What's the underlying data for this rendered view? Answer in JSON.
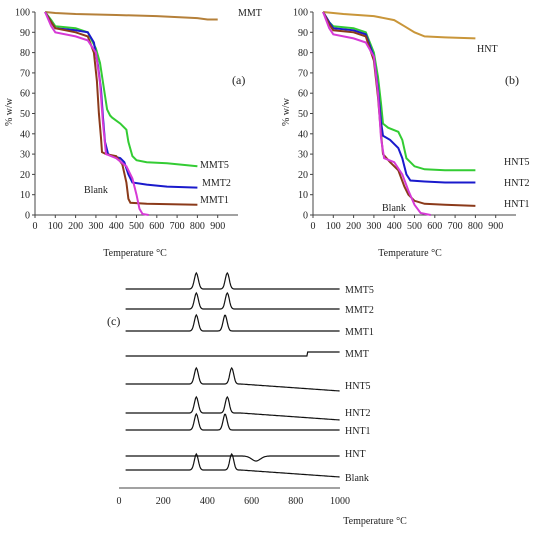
{
  "chart_data": [
    {
      "id": "a",
      "type": "line",
      "panel_label": "(a)",
      "xlabel": "Temperature °C",
      "ylabel": "% w/w",
      "xlim": [
        0,
        1000
      ],
      "ylim": [
        0,
        100
      ],
      "xticks": [
        0,
        100,
        200,
        300,
        400,
        500,
        600,
        700,
        800,
        900
      ],
      "yticks": [
        0,
        10,
        20,
        30,
        40,
        50,
        60,
        70,
        80,
        90,
        100
      ],
      "grid": false,
      "series": [
        {
          "name": "MMT",
          "color": "#b5803a",
          "points": [
            [
              50,
              100
            ],
            [
              100,
              99.5
            ],
            [
              200,
              99
            ],
            [
              400,
              98.5
            ],
            [
              600,
              98
            ],
            [
              800,
              97
            ],
            [
              850,
              96.3
            ],
            [
              900,
              96.3
            ]
          ]
        },
        {
          "name": "MMT5",
          "color": "#33cc33",
          "points": [
            [
              50,
              100
            ],
            [
              80,
              96
            ],
            [
              100,
              93
            ],
            [
              200,
              92
            ],
            [
              260,
              90
            ],
            [
              300,
              82
            ],
            [
              320,
              75
            ],
            [
              340,
              62
            ],
            [
              355,
              52
            ],
            [
              370,
              49
            ],
            [
              380,
              48
            ],
            [
              420,
              45
            ],
            [
              450,
              42
            ],
            [
              460,
              36
            ],
            [
              480,
              29
            ],
            [
              500,
              27
            ],
            [
              550,
              26
            ],
            [
              650,
              25.5
            ],
            [
              800,
              24
            ]
          ]
        },
        {
          "name": "MMT2",
          "color": "#1a1acc",
          "points": [
            [
              50,
              100
            ],
            [
              80,
              95
            ],
            [
              100,
              92
            ],
            [
              200,
              91
            ],
            [
              260,
              90
            ],
            [
              290,
              85
            ],
            [
              310,
              74
            ],
            [
              325,
              62
            ],
            [
              335,
              48
            ],
            [
              345,
              36
            ],
            [
              360,
              30
            ],
            [
              380,
              29
            ],
            [
              420,
              28
            ],
            [
              440,
              26
            ],
            [
              460,
              20
            ],
            [
              480,
              16
            ],
            [
              550,
              15
            ],
            [
              650,
              14
            ],
            [
              800,
              13.5
            ]
          ]
        },
        {
          "name": "MMT1",
          "color": "#8b3a1a",
          "points": [
            [
              50,
              100
            ],
            [
              80,
              95
            ],
            [
              100,
              92
            ],
            [
              200,
              90
            ],
            [
              260,
              88
            ],
            [
              290,
              80
            ],
            [
              305,
              66
            ],
            [
              315,
              50
            ],
            [
              325,
              38
            ],
            [
              330,
              31
            ],
            [
              350,
              30
            ],
            [
              400,
              29
            ],
            [
              430,
              25
            ],
            [
              450,
              16
            ],
            [
              460,
              8
            ],
            [
              470,
              6
            ],
            [
              550,
              5.5
            ],
            [
              800,
              5
            ]
          ]
        },
        {
          "name": "Blank",
          "color": "#d63ad6",
          "points": [
            [
              50,
              100
            ],
            [
              80,
              93
            ],
            [
              100,
              90
            ],
            [
              200,
              88
            ],
            [
              260,
              86
            ],
            [
              300,
              80
            ],
            [
              320,
              65
            ],
            [
              335,
              45
            ],
            [
              350,
              30
            ],
            [
              400,
              28
            ],
            [
              450,
              24
            ],
            [
              480,
              18
            ],
            [
              500,
              10
            ],
            [
              515,
              3
            ],
            [
              530,
              0.5
            ],
            [
              560,
              0
            ]
          ]
        }
      ],
      "series_labels_shown": [
        "MMT",
        "MMT5",
        "MMT2",
        "MMT1",
        "Blank"
      ]
    },
    {
      "id": "b",
      "type": "line",
      "panel_label": "(b)",
      "xlabel": "Temperature °C",
      "ylabel": "% w/w",
      "xlim": [
        0,
        1000
      ],
      "ylim": [
        0,
        100
      ],
      "xticks": [
        0,
        100,
        200,
        300,
        400,
        500,
        600,
        700,
        800,
        900
      ],
      "yticks": [
        0,
        10,
        20,
        30,
        40,
        50,
        60,
        70,
        80,
        90,
        100
      ],
      "grid": false,
      "series": [
        {
          "name": "HNT",
          "color": "#c9963a",
          "points": [
            [
              50,
              100
            ],
            [
              150,
              99
            ],
            [
              300,
              98
            ],
            [
              400,
              96
            ],
            [
              450,
              93
            ],
            [
              500,
              90
            ],
            [
              550,
              88
            ],
            [
              650,
              87.5
            ],
            [
              800,
              87
            ]
          ]
        },
        {
          "name": "HNT5",
          "color": "#33cc33",
          "points": [
            [
              50,
              100
            ],
            [
              80,
              95
            ],
            [
              100,
              93
            ],
            [
              200,
              92
            ],
            [
              260,
              90
            ],
            [
              300,
              80
            ],
            [
              320,
              68
            ],
            [
              335,
              55
            ],
            [
              345,
              45
            ],
            [
              370,
              43
            ],
            [
              420,
              41
            ],
            [
              440,
              37
            ],
            [
              460,
              28
            ],
            [
              500,
              24
            ],
            [
              550,
              22.5
            ],
            [
              650,
              22
            ],
            [
              800,
              22
            ]
          ]
        },
        {
          "name": "HNT2",
          "color": "#1a1acc",
          "points": [
            [
              50,
              100
            ],
            [
              80,
              95
            ],
            [
              100,
              92
            ],
            [
              200,
              91
            ],
            [
              260,
              89
            ],
            [
              300,
              78
            ],
            [
              320,
              62
            ],
            [
              335,
              46
            ],
            [
              345,
              39
            ],
            [
              380,
              37
            ],
            [
              420,
              33
            ],
            [
              440,
              28
            ],
            [
              460,
              20
            ],
            [
              480,
              17
            ],
            [
              550,
              16.5
            ],
            [
              650,
              16
            ],
            [
              800,
              16
            ]
          ]
        },
        {
          "name": "HNT1",
          "color": "#8b3a1a",
          "points": [
            [
              50,
              100
            ],
            [
              80,
              94
            ],
            [
              100,
              91
            ],
            [
              200,
              90
            ],
            [
              260,
              88
            ],
            [
              300,
              76
            ],
            [
              320,
              58
            ],
            [
              335,
              40
            ],
            [
              345,
              30
            ],
            [
              380,
              26
            ],
            [
              420,
              22
            ],
            [
              450,
              14
            ],
            [
              470,
              10
            ],
            [
              500,
              7
            ],
            [
              550,
              5.5
            ],
            [
              650,
              5
            ],
            [
              800,
              4.5
            ]
          ]
        },
        {
          "name": "Blank",
          "color": "#d63ad6",
          "points": [
            [
              50,
              100
            ],
            [
              80,
              92
            ],
            [
              100,
              89
            ],
            [
              200,
              87
            ],
            [
              260,
              85
            ],
            [
              300,
              78
            ],
            [
              320,
              60
            ],
            [
              335,
              38
            ],
            [
              350,
              28
            ],
            [
              400,
              26
            ],
            [
              440,
              20
            ],
            [
              470,
              12
            ],
            [
              500,
              5
            ],
            [
              530,
              1
            ],
            [
              580,
              0
            ]
          ]
        }
      ],
      "series_labels_shown": [
        "HNT",
        "HNT5",
        "HNT2",
        "HNT1",
        "Blank"
      ]
    },
    {
      "id": "c",
      "type": "line",
      "panel_label": "(c)",
      "xlabel": "Temperature °C",
      "xlim": [
        0,
        1000
      ],
      "xticks": [
        0,
        200,
        400,
        600,
        800,
        1000
      ],
      "grid": false,
      "series": [
        {
          "name": "MMT5",
          "color": "#111111",
          "peaks": [
            350,
            490
          ],
          "baseline_end_rise": 0
        },
        {
          "name": "MMT2",
          "color": "#111111",
          "peaks": [
            350,
            490
          ],
          "baseline_end_rise": 0
        },
        {
          "name": "MMT1",
          "color": "#111111",
          "peaks": [
            350,
            480
          ],
          "baseline_end_rise": 0
        },
        {
          "name": "MMT",
          "color": "#111111",
          "peaks": [],
          "baseline_end_rise": 1
        },
        {
          "name": "HNT5",
          "color": "#111111",
          "peaks": [
            350,
            510
          ],
          "baseline_end_rise": -1
        },
        {
          "name": "HNT2",
          "color": "#111111",
          "peaks": [
            350,
            490
          ],
          "baseline_end_rise": -1
        },
        {
          "name": "HNT1",
          "color": "#111111",
          "peaks": [
            350,
            480
          ],
          "baseline_end_rise": 0
        },
        {
          "name": "HNT",
          "color": "#111111",
          "peaks": [],
          "dip": 620,
          "baseline_end_rise": 0
        },
        {
          "name": "Blank",
          "color": "#111111",
          "peaks": [
            350,
            510
          ],
          "baseline_end_rise": -1
        }
      ]
    }
  ]
}
